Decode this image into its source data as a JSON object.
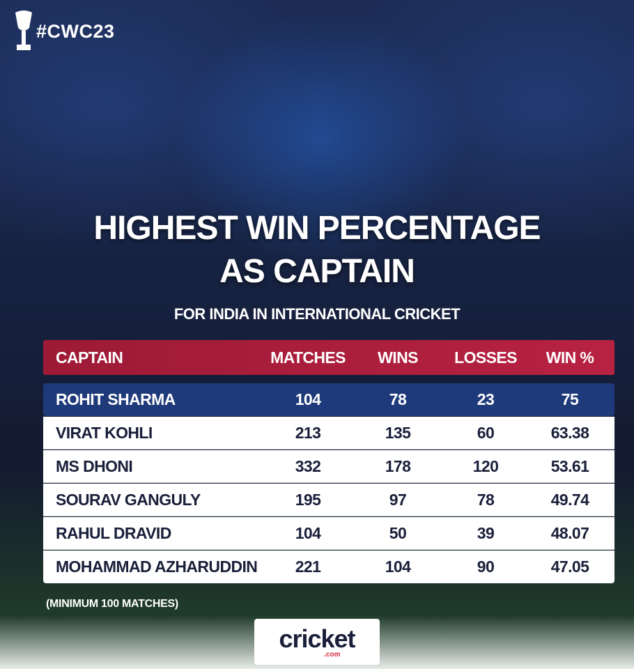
{
  "hashtag": "#CWC23",
  "title": [
    "HIGHEST WIN PERCENTAGE",
    "AS CAPTAIN"
  ],
  "subtitle": "FOR INDIA IN INTERNATIONAL CRICKET",
  "table": {
    "headers": [
      "CAPTAIN",
      "MATCHES",
      "WINS",
      "LOSSES",
      "WIN %"
    ],
    "rows": [
      [
        "ROHIT SHARMA",
        104,
        78,
        23,
        75
      ],
      [
        "VIRAT KOHLI",
        213,
        135,
        60,
        63.38
      ],
      [
        "MS DHONI",
        332,
        178,
        120,
        53.61
      ],
      [
        "SOURAV GANGULY",
        195,
        97,
        78,
        49.74
      ],
      [
        "RAHUL DRAVID",
        104,
        50,
        39,
        48.07
      ],
      [
        "MOHAMMAD AZHARUDDIN",
        221,
        104,
        90,
        47.05
      ]
    ]
  },
  "footnote": "(MINIMUM 100 MATCHES)",
  "logo": {
    "name": "cricket",
    "suffix": ".com"
  }
}
